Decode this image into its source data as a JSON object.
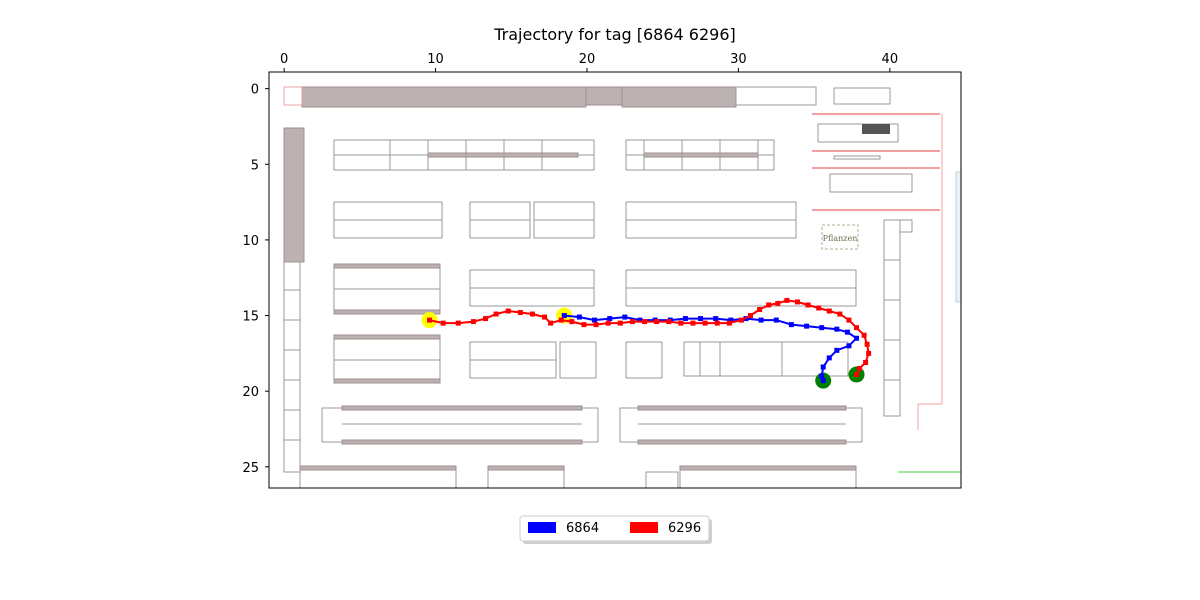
{
  "chart_data": {
    "type": "scatter",
    "title": "Trajectory for tag [6864 6296]",
    "xlabel": "",
    "ylabel": "",
    "xlim": [
      -1,
      44.7
    ],
    "ylim": [
      26.4,
      -1.1
    ],
    "x_ticks": [
      0,
      10,
      20,
      30,
      40
    ],
    "y_ticks": [
      0,
      5,
      10,
      15,
      20,
      25
    ],
    "x_axis_position": "top",
    "grid": false,
    "legend_position": "bottom-center",
    "series": [
      {
        "name": "6864",
        "color": "#0000ff",
        "points": [
          [
            18.5,
            15.0
          ],
          [
            19.5,
            15.1
          ],
          [
            20.5,
            15.3
          ],
          [
            21.5,
            15.2
          ],
          [
            22.5,
            15.1
          ],
          [
            23.5,
            15.3
          ],
          [
            24.5,
            15.3
          ],
          [
            25.5,
            15.3
          ],
          [
            26.5,
            15.2
          ],
          [
            27.5,
            15.2
          ],
          [
            28.5,
            15.2
          ],
          [
            29.5,
            15.3
          ],
          [
            30.5,
            15.2
          ],
          [
            31.5,
            15.3
          ],
          [
            32.5,
            15.3
          ],
          [
            33.5,
            15.6
          ],
          [
            34.5,
            15.7
          ],
          [
            35.5,
            15.8
          ],
          [
            36.5,
            15.9
          ],
          [
            37.2,
            16.1
          ],
          [
            37.8,
            16.5
          ],
          [
            37.3,
            17.0
          ],
          [
            36.5,
            17.3
          ],
          [
            36.0,
            17.8
          ],
          [
            35.6,
            18.4
          ],
          [
            35.5,
            19.0
          ],
          [
            35.6,
            19.3
          ]
        ],
        "start": [
          18.5,
          15.0
        ],
        "end": [
          35.6,
          19.3
        ]
      },
      {
        "name": "6296",
        "color": "#ff0000",
        "points": [
          [
            9.6,
            15.3
          ],
          [
            10.5,
            15.5
          ],
          [
            11.5,
            15.5
          ],
          [
            12.5,
            15.4
          ],
          [
            13.3,
            15.2
          ],
          [
            14.0,
            14.9
          ],
          [
            14.8,
            14.7
          ],
          [
            15.6,
            14.8
          ],
          [
            16.4,
            14.9
          ],
          [
            17.2,
            15.1
          ],
          [
            17.6,
            15.5
          ],
          [
            18.3,
            15.3
          ],
          [
            19.0,
            15.4
          ],
          [
            19.8,
            15.6
          ],
          [
            20.6,
            15.6
          ],
          [
            21.4,
            15.5
          ],
          [
            22.2,
            15.5
          ],
          [
            23.0,
            15.4
          ],
          [
            23.8,
            15.4
          ],
          [
            24.6,
            15.4
          ],
          [
            25.4,
            15.4
          ],
          [
            26.2,
            15.5
          ],
          [
            27.0,
            15.5
          ],
          [
            27.8,
            15.5
          ],
          [
            28.6,
            15.5
          ],
          [
            29.4,
            15.5
          ],
          [
            30.2,
            15.3
          ],
          [
            30.8,
            15.0
          ],
          [
            31.4,
            14.6
          ],
          [
            32.0,
            14.3
          ],
          [
            32.6,
            14.2
          ],
          [
            33.2,
            14.0
          ],
          [
            33.9,
            14.1
          ],
          [
            34.6,
            14.3
          ],
          [
            35.3,
            14.5
          ],
          [
            36.0,
            14.7
          ],
          [
            36.7,
            14.9
          ],
          [
            37.3,
            15.3
          ],
          [
            37.8,
            15.8
          ],
          [
            38.3,
            16.3
          ],
          [
            38.5,
            16.9
          ],
          [
            38.6,
            17.5
          ],
          [
            38.4,
            18.1
          ],
          [
            38.0,
            18.5
          ],
          [
            37.8,
            18.9
          ]
        ],
        "start": [
          9.6,
          15.3
        ],
        "end": [
          37.8,
          18.9
        ]
      }
    ],
    "start_marker_color": "#ffff00",
    "end_marker_color": "#008000",
    "floorplan_labels": [
      {
        "text": "Pflanzen",
        "x": 36.5,
        "y": 10.0
      }
    ]
  }
}
